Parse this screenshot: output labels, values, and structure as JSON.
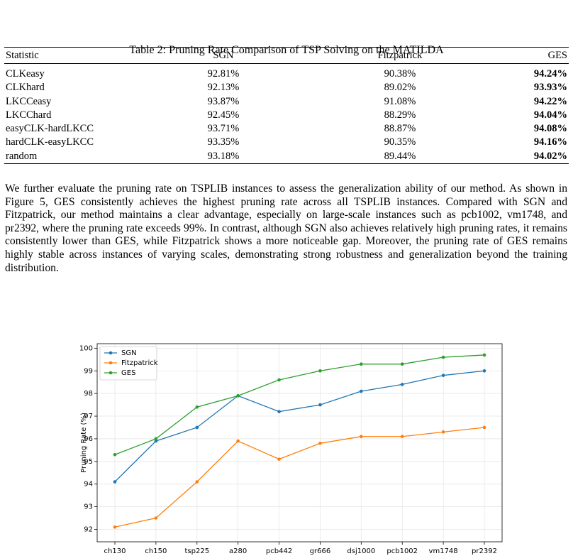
{
  "table": {
    "caption": "Table 2: Pruning Rate Comparison of TSP Solving on the MATILDA",
    "columns": [
      "Statistic",
      "SGN",
      "Fitzpatrick",
      "GES"
    ],
    "rows": [
      [
        "CLKeasy",
        "92.81%",
        "90.38%",
        "94.24%"
      ],
      [
        "CLKhard",
        "92.13%",
        "89.02%",
        "93.93%"
      ],
      [
        "LKCCeasy",
        "93.87%",
        "91.08%",
        "94.22%"
      ],
      [
        "LKCChard",
        "92.45%",
        "88.29%",
        "94.04%"
      ],
      [
        "easyCLK-hardLKCC",
        "93.71%",
        "88.87%",
        "94.08%"
      ],
      [
        "hardCLK-easyLKCC",
        "93.35%",
        "90.35%",
        "94.16%"
      ],
      [
        "random",
        "93.18%",
        "89.44%",
        "94.02%"
      ]
    ]
  },
  "paragraph": "We further evaluate the pruning rate on TSPLIB instances to assess the generalization ability of our method. As shown in Figure 5, GES consistently achieves the highest pruning rate across all TSPLIB instances. Compared with SGN and Fitzpatrick, our method maintains a clear advantage, especially on large-scale instances such as pcb1002, vm1748, and pr2392, where the pruning rate exceeds 99%. In contrast, although SGN also achieves relatively high pruning rates, it remains consistently lower than GES, while Fitzpatrick shows a more noticeable gap. Moreover, the pruning rate of GES remains highly stable across instances of varying scales, demonstrating strong robustness and generalization beyond the training distribution.",
  "chart_data": {
    "type": "line",
    "y_label": "Pruning Rate (%)",
    "categories": [
      "ch130",
      "ch150",
      "tsp225",
      "a280",
      "pcb442",
      "gr666",
      "dsj1000",
      "pcb1002",
      "vm1748",
      "pr2392"
    ],
    "series": [
      {
        "name": "SGN",
        "color": "#1f77b4",
        "values": [
          94.1,
          95.9,
          96.5,
          97.9,
          97.2,
          97.5,
          98.1,
          98.4,
          98.8,
          99.0
        ]
      },
      {
        "name": "Fitzpatrick",
        "color": "#ff7f0e",
        "values": [
          92.1,
          92.5,
          94.1,
          95.9,
          95.1,
          95.8,
          96.1,
          96.1,
          96.3,
          96.5
        ]
      },
      {
        "name": "GES",
        "color": "#2ca02c",
        "values": [
          95.3,
          96.0,
          97.4,
          97.9,
          98.6,
          99.0,
          99.3,
          99.3,
          99.6,
          99.7
        ]
      }
    ],
    "ylim": [
      91.45,
      100.2
    ],
    "yticks": [
      92,
      93,
      94,
      95,
      96,
      97,
      98,
      99,
      100
    ],
    "grid": true,
    "legend": "upper-left"
  }
}
